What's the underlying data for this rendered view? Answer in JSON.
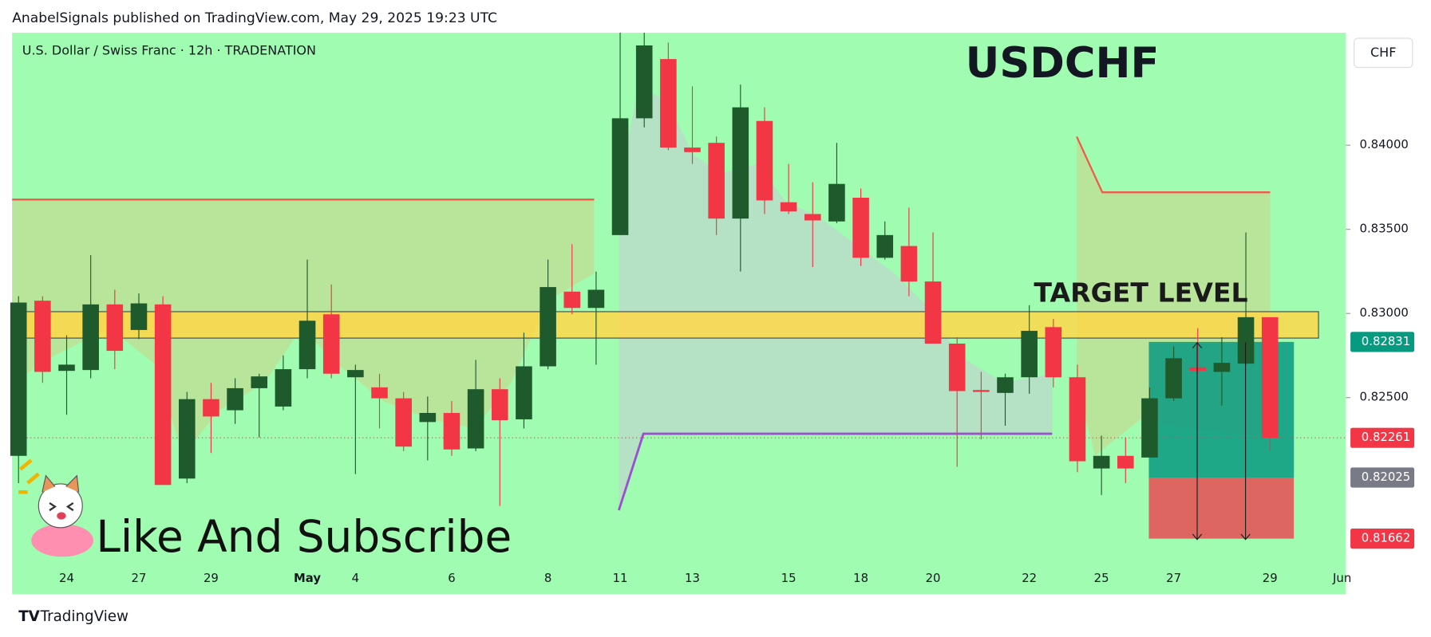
{
  "header": "AnabelSignals published on TradingView.com, May 29, 2025 19:23 UTC",
  "branding": "TradingView",
  "chart_data": {
    "type": "candlestick",
    "symbol_info": "U.S. Dollar / Swiss Franc · 12h · TRADENATION",
    "title": "USDCHF",
    "annotations": [
      "TARGET LEVEL",
      "Like And Subscribe"
    ],
    "currency": "CHF",
    "up_color": "#1f5a2c",
    "down_color": "#f23645",
    "background": "#9ffcb1",
    "ylim": [
      0.81332,
      0.84668
    ],
    "yticks": [
      {
        "value": 0.825,
        "label": "0.82500"
      },
      {
        "value": 0.83,
        "label": "0.83000"
      },
      {
        "value": 0.835,
        "label": "0.83500"
      },
      {
        "value": 0.84,
        "label": "0.84000"
      }
    ],
    "xtick_labels": [
      "24",
      "27",
      "29",
      "May",
      "4",
      "6",
      "8",
      "11",
      "13",
      "15",
      "18",
      "20",
      "22",
      "25",
      "27",
      "29",
      "Jun"
    ],
    "open": [
      0.82154,
      0.83076,
      0.82659,
      0.82664,
      0.83054,
      0.82902,
      0.83054,
      0.82019,
      0.82491,
      0.82425,
      0.82556,
      0.82447,
      0.82669,
      0.82995,
      0.82621,
      0.82561,
      0.82496,
      0.82355,
      0.82409,
      0.82198,
      0.8255,
      0.82371,
      0.82686,
      0.8313,
      0.83033,
      0.83466,
      0.8416,
      0.84512,
      0.83986,
      0.84014,
      0.83564,
      0.84144,
      0.83661,
      0.83591,
      0.83547,
      0.83688,
      0.83331,
      0.83401,
      0.8319,
      0.82821,
      0.82545,
      0.82528,
      0.82621,
      0.82919,
      0.82621,
      0.82079,
      0.82154,
      0.82144,
      0.82496,
      0.8268,
      0.82653,
      0.82702,
      0.82978
    ],
    "high": [
      0.83103,
      0.83103,
      0.8287,
      0.83347,
      0.83141,
      0.83119,
      0.83103,
      0.82534,
      0.82588,
      0.82615,
      0.82642,
      0.82751,
      0.8332,
      0.83173,
      0.82696,
      0.82642,
      0.82534,
      0.82507,
      0.8248,
      0.82724,
      0.82615,
      0.82886,
      0.8332,
      0.83412,
      0.83249,
      0.84669,
      0.84669,
      0.8461,
      0.8435,
      0.84051,
      0.8436,
      0.84225,
      0.83889,
      0.8378,
      0.84014,
      0.83743,
      0.83547,
      0.83629,
      0.83482,
      0.82859,
      0.82653,
      0.82642,
      0.83049,
      0.82967,
      0.82696,
      0.82274,
      0.82263,
      0.82561,
      0.82805,
      0.82913,
      0.82859,
      0.83482,
      0.82978
    ],
    "low": [
      0.81992,
      0.82588,
      0.82398,
      0.82615,
      0.82669,
      0.82848,
      0.81981,
      0.81992,
      0.82171,
      0.82344,
      0.82263,
      0.82425,
      0.82615,
      0.82615,
      0.82046,
      0.82317,
      0.82182,
      0.82127,
      0.82154,
      0.82182,
      0.81856,
      0.82317,
      0.82669,
      0.82995,
      0.82696,
      0.83466,
      0.84106,
      0.8397,
      0.83889,
      0.83466,
      0.83249,
      0.83591,
      0.83591,
      0.83276,
      0.83537,
      0.83282,
      0.8332,
      0.83103,
      0.82821,
      0.82089,
      0.82252,
      0.82333,
      0.82523,
      0.82561,
      0.82057,
      0.81921,
      0.81992,
      0.82144,
      0.8248,
      0.82642,
      0.82453,
      0.82696,
      0.82182
    ],
    "close": [
      0.83065,
      0.82653,
      0.82696,
      0.83054,
      0.82778,
      0.8306,
      0.81981,
      0.82491,
      0.82388,
      0.82556,
      0.82626,
      0.82669,
      0.82957,
      0.82642,
      0.82664,
      0.82496,
      0.82209,
      0.82409,
      0.82192,
      0.8255,
      0.82366,
      0.82686,
      0.83157,
      0.83033,
      0.83141,
      0.8416,
      0.84593,
      0.83986,
      0.83959,
      0.83564,
      0.84225,
      0.83672,
      0.83607,
      0.83553,
      0.8377,
      0.83331,
      0.83466,
      0.8319,
      0.82821,
      0.82539,
      0.82534,
      0.82621,
      0.82897,
      0.82621,
      0.82122,
      0.82154,
      0.82079,
      0.82496,
      0.82734,
      0.82659,
      0.82707,
      0.82978,
      0.82261
    ],
    "price_labels": [
      {
        "value": 0.82831,
        "color": "#089981"
      },
      {
        "value": 0.82261,
        "color": "#f23645"
      },
      {
        "value": 0.82025,
        "color": "#787b86"
      },
      {
        "value": 0.81662,
        "color": "#f23645"
      }
    ]
  }
}
